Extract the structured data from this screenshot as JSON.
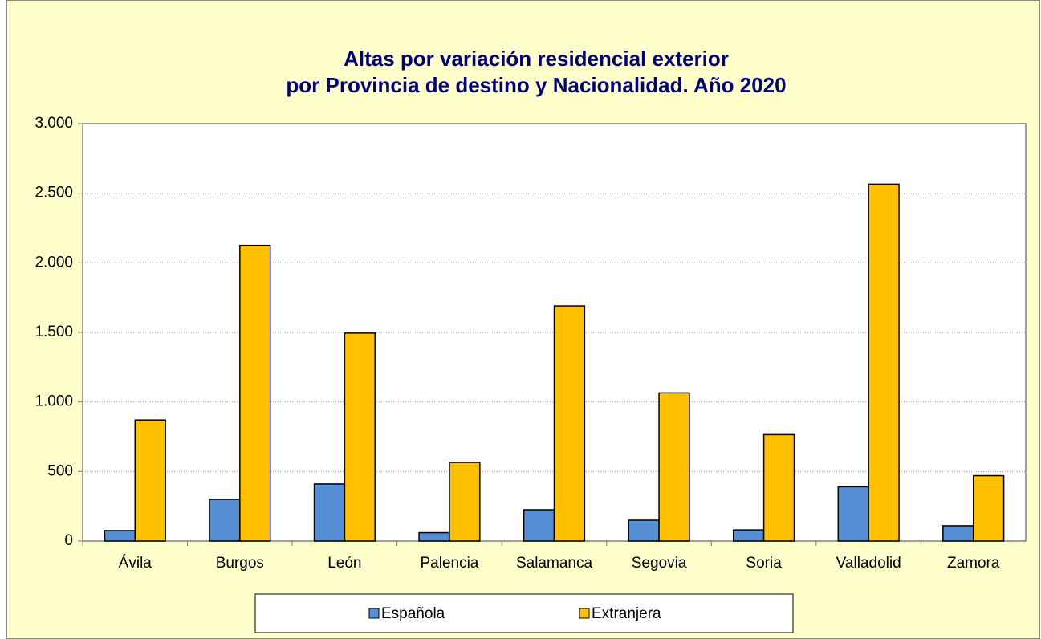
{
  "chart_data": {
    "type": "bar",
    "title": [
      "Altas por variación residencial exterior",
      "por Provincia de destino y Nacionalidad. Año 2020"
    ],
    "categories": [
      "Ávila",
      "Burgos",
      "León",
      "Palencia",
      "Salamanca",
      "Segovia",
      "Soria",
      "Valladolid",
      "Zamora"
    ],
    "series": [
      {
        "name": "Española",
        "color": "#558ed5",
        "values": [
          75,
          300,
          410,
          60,
          225,
          150,
          80,
          390,
          110
        ]
      },
      {
        "name": "Extranjera",
        "color": "#ffc000",
        "values": [
          870,
          2125,
          1495,
          565,
          1690,
          1065,
          765,
          2565,
          470
        ]
      }
    ],
    "ylim": [
      0,
      3000
    ],
    "yticks": [
      0,
      500,
      {
        "value": 1000,
        "label": "1.000"
      },
      {
        "value": 1500,
        "label": "1.500"
      },
      {
        "value": 2000,
        "label": "2.000"
      },
      {
        "value": 2500,
        "label": "2.500"
      },
      {
        "value": 3000,
        "label": "3.000"
      }
    ],
    "grid": true,
    "legend": "bottom"
  }
}
